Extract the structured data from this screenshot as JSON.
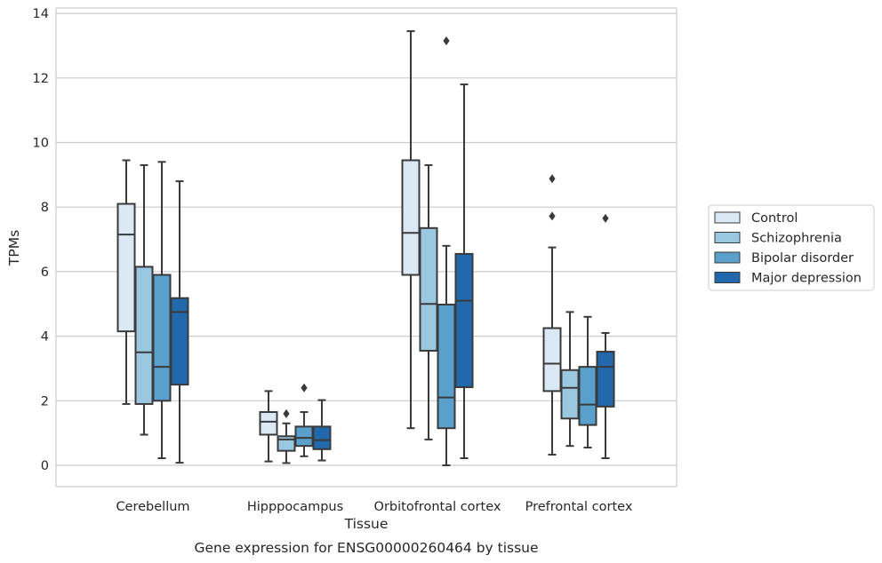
{
  "chart_data": {
    "type": "box",
    "title": "",
    "caption": "Gene expression for ENSG00000260464 by tissue",
    "xlabel": "Tissue",
    "ylabel": "TPMs",
    "ylim": [
      -0.65,
      14.2
    ],
    "yticks": [
      0,
      2,
      4,
      6,
      8,
      10,
      12,
      14
    ],
    "ytick_labels": [
      "0",
      "2",
      "4",
      "6",
      "8",
      "10",
      "12",
      "14"
    ],
    "grid": true,
    "legend_position": "right",
    "categories": [
      "Cerebellum",
      "Hipppocampus",
      "Orbitofrontal cortex",
      "Prefrontal cortex"
    ],
    "series": [
      {
        "name": "Control",
        "color": "#dbe9f6",
        "boxes": [
          {
            "whisker_low": 1.9,
            "q1": 4.15,
            "median": 7.15,
            "q3": 8.1,
            "whisker_high": 9.45,
            "outliers": []
          },
          {
            "whisker_low": 0.12,
            "q1": 0.95,
            "median": 1.35,
            "q3": 1.65,
            "whisker_high": 2.3,
            "outliers": []
          },
          {
            "whisker_low": 1.15,
            "q1": 5.9,
            "median": 7.2,
            "q3": 9.45,
            "whisker_high": 13.45,
            "outliers": []
          },
          {
            "whisker_low": 0.33,
            "q1": 2.3,
            "median": 3.15,
            "q3": 4.25,
            "whisker_high": 6.75,
            "outliers": [
              7.72,
              8.88
            ]
          }
        ]
      },
      {
        "name": "Schizophrenia",
        "color": "#9ac8e0",
        "boxes": [
          {
            "whisker_low": 0.95,
            "q1": 1.9,
            "median": 3.5,
            "q3": 6.15,
            "whisker_high": 9.3,
            "outliers": []
          },
          {
            "whisker_low": 0.07,
            "q1": 0.45,
            "median": 0.8,
            "q3": 0.9,
            "whisker_high": 1.3,
            "outliers": [
              1.6
            ]
          },
          {
            "whisker_low": 0.8,
            "q1": 3.55,
            "median": 5.0,
            "q3": 7.35,
            "whisker_high": 9.3,
            "outliers": []
          },
          {
            "whisker_low": 0.6,
            "q1": 1.45,
            "median": 2.4,
            "q3": 2.95,
            "whisker_high": 4.75,
            "outliers": []
          }
        ]
      },
      {
        "name": "Bipolar disorder",
        "color": "#5aa0cd",
        "boxes": [
          {
            "whisker_low": 0.22,
            "q1": 2.0,
            "median": 3.05,
            "q3": 5.9,
            "whisker_high": 9.4,
            "outliers": []
          },
          {
            "whisker_low": 0.28,
            "q1": 0.6,
            "median": 0.85,
            "q3": 1.2,
            "whisker_high": 1.65,
            "outliers": [
              2.4
            ]
          },
          {
            "whisker_low": 0.0,
            "q1": 1.15,
            "median": 2.1,
            "q3": 4.98,
            "whisker_high": 6.8,
            "outliers": [
              13.15
            ]
          },
          {
            "whisker_low": 0.55,
            "q1": 1.25,
            "median": 1.88,
            "q3": 3.05,
            "whisker_high": 4.6,
            "outliers": []
          }
        ]
      },
      {
        "name": "Major depression",
        "color": "#2268ad",
        "boxes": [
          {
            "whisker_low": 0.08,
            "q1": 2.5,
            "median": 4.75,
            "q3": 5.18,
            "whisker_high": 8.8,
            "outliers": []
          },
          {
            "whisker_low": 0.15,
            "q1": 0.5,
            "median": 0.78,
            "q3": 1.2,
            "whisker_high": 2.02,
            "outliers": []
          },
          {
            "whisker_low": 0.22,
            "q1": 2.42,
            "median": 5.1,
            "q3": 6.55,
            "whisker_high": 11.8,
            "outliers": []
          },
          {
            "whisker_low": 0.22,
            "q1": 1.82,
            "median": 3.05,
            "q3": 3.52,
            "whisker_high": 4.1,
            "outliers": [
              7.65
            ]
          }
        ]
      }
    ]
  }
}
